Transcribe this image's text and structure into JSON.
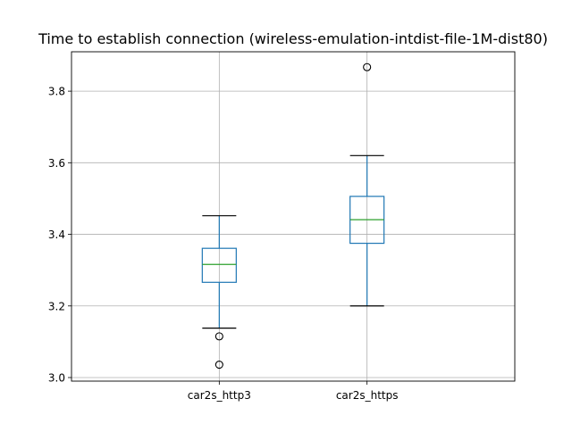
{
  "chart_data": {
    "type": "box",
    "title": "Time to establish connection (wireless-emulation-intdist-file-1M-dist80)",
    "xlabel": "",
    "ylabel": "",
    "categories": [
      "car2s_http3",
      "car2s_https"
    ],
    "ylim": [
      2.99,
      3.91
    ],
    "yticks": [
      "3.0",
      "3.2",
      "3.4",
      "3.6",
      "3.8"
    ],
    "grid": true,
    "boxes": [
      {
        "name": "car2s_http3",
        "whisker_low": 3.138,
        "q1": 3.266,
        "median": 3.316,
        "q3": 3.361,
        "whisker_high": 3.452,
        "outliers": [
          3.115,
          3.036
        ]
      },
      {
        "name": "car2s_https",
        "whisker_low": 3.2,
        "q1": 3.375,
        "median": 3.441,
        "q3": 3.506,
        "whisker_high": 3.62,
        "outliers": [
          3.867
        ]
      }
    ],
    "colors": {
      "box": "#1f77b4",
      "median": "#2ca02c",
      "whisker": "#1f77b4",
      "cap": "#000000",
      "grid": "#b0b0b0",
      "outlier_edge": "#000000"
    }
  }
}
